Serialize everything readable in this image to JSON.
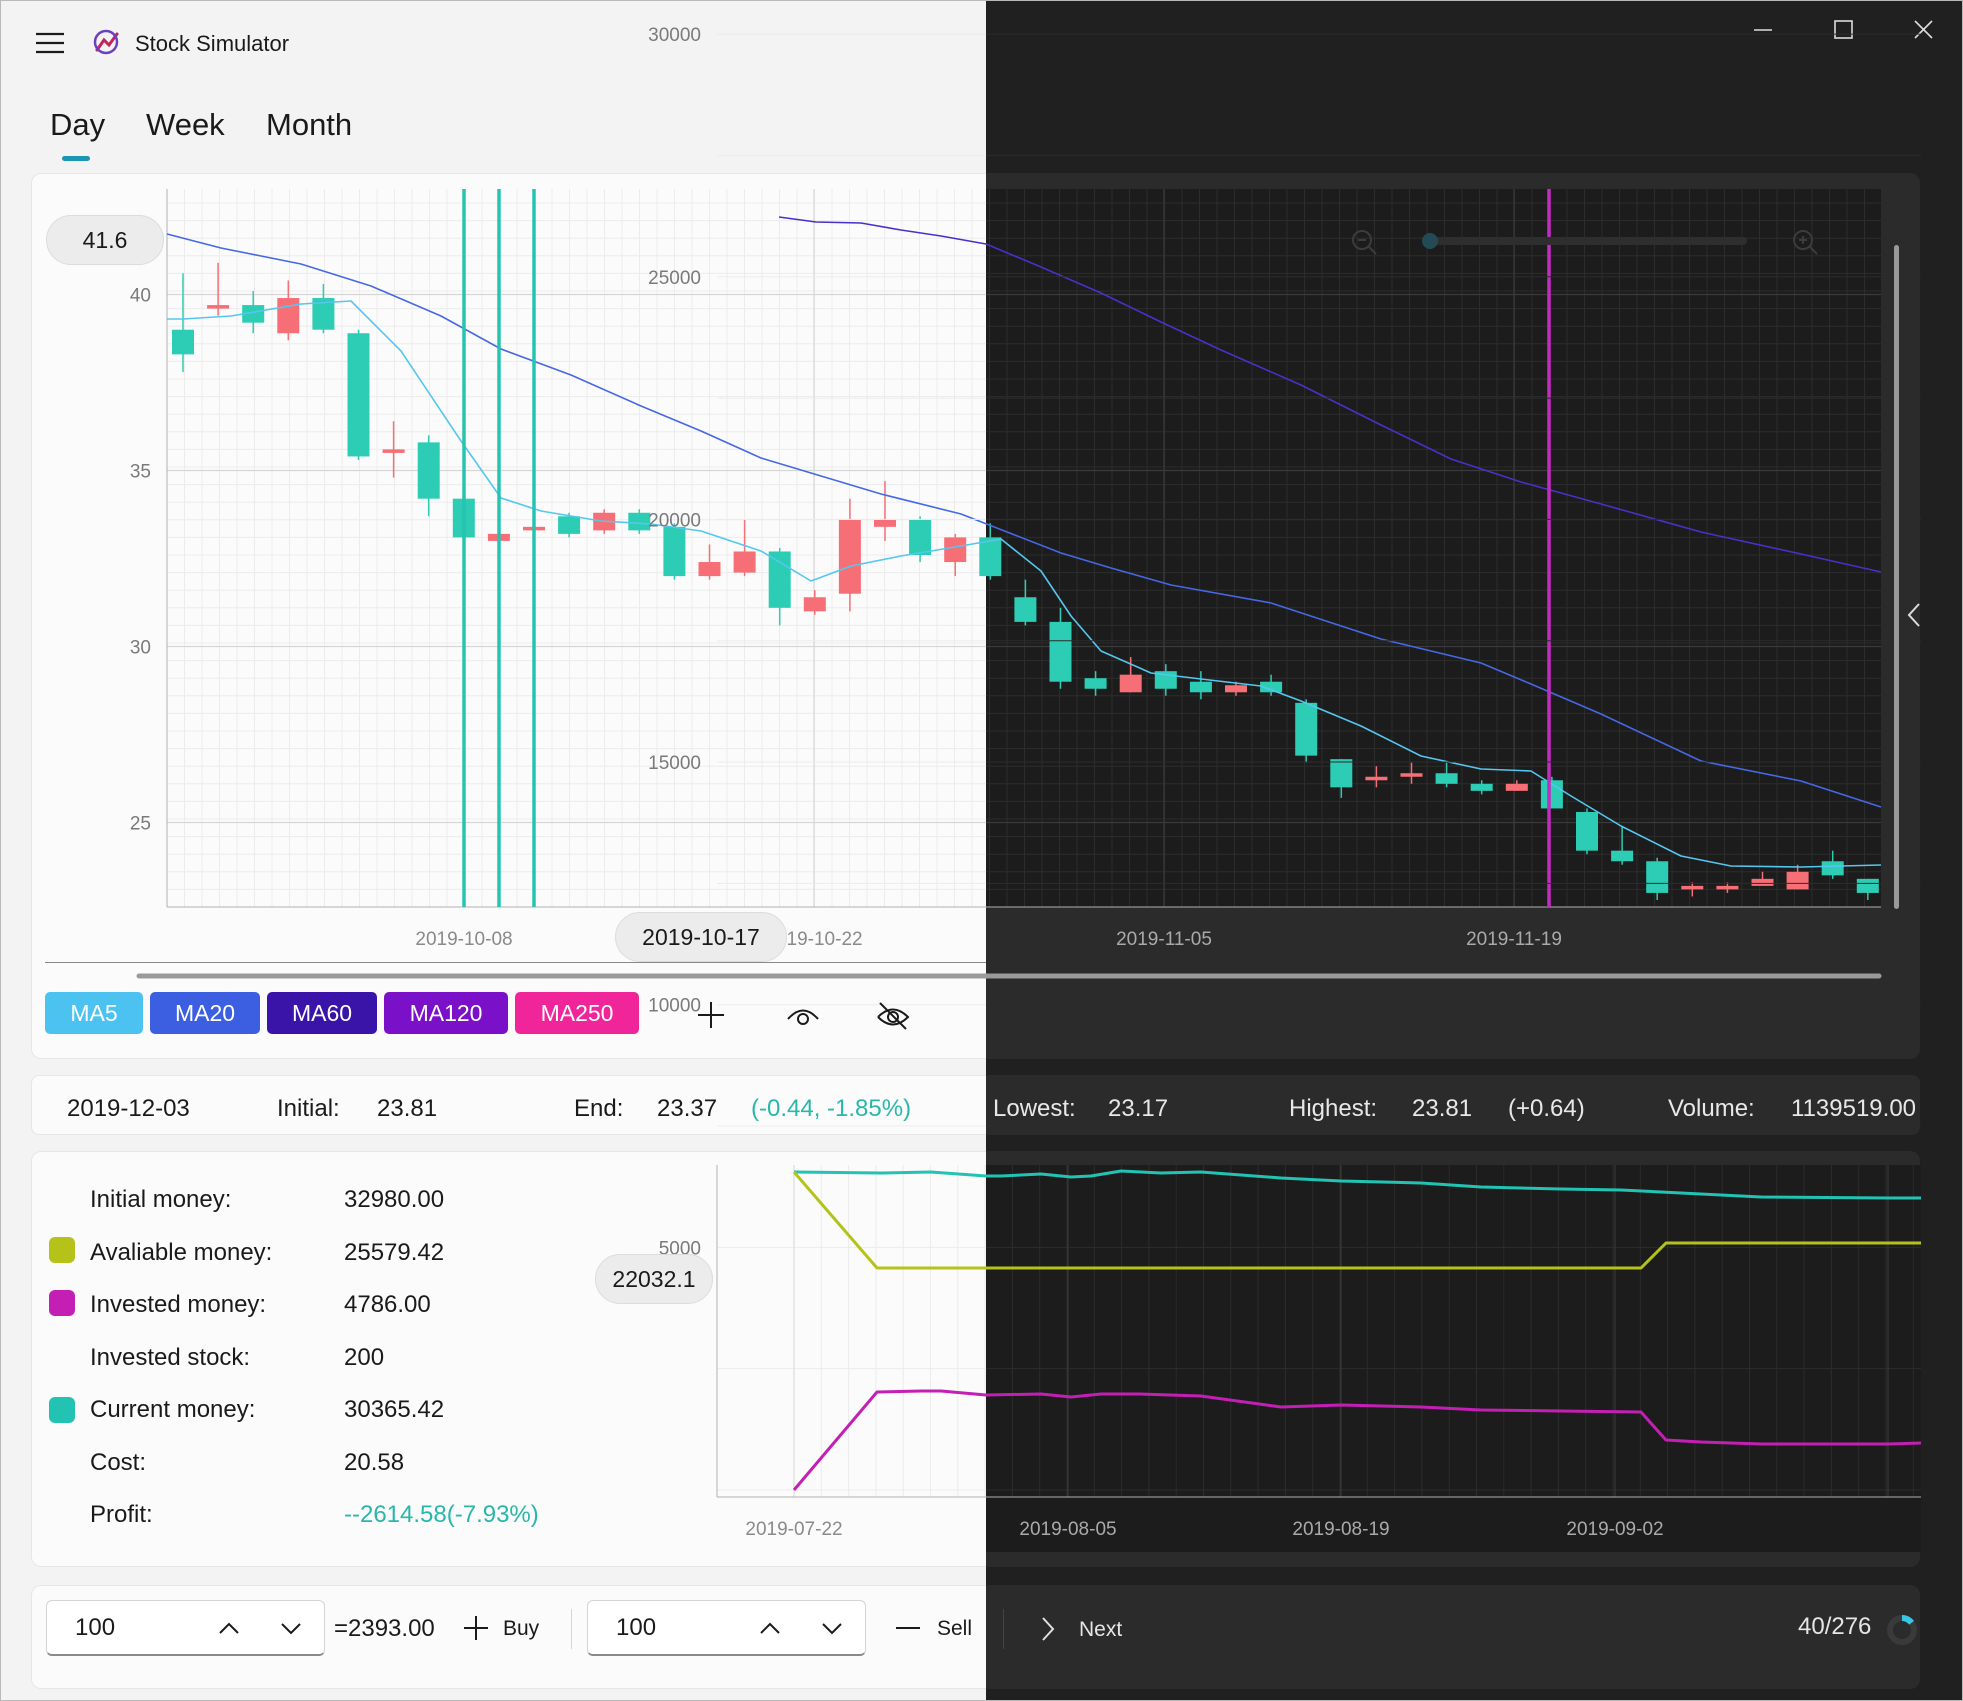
{
  "app": {
    "title": "Stock Simulator"
  },
  "window_controls": {
    "minimize": "minimize",
    "maximize": "maximize",
    "close": "close"
  },
  "tabs": [
    {
      "label": "Day"
    },
    {
      "label": "Week"
    },
    {
      "label": "Month"
    }
  ],
  "candle_chart": {
    "hover_price": "41.6",
    "hover_date": "2019-10-17",
    "y_ticks": [
      "40",
      "35",
      "30",
      "25"
    ],
    "x_ticks": [
      "2019-10-08",
      "2019-10-22",
      "2019-11-05",
      "2019-11-19"
    ]
  },
  "ma_buttons": [
    {
      "label": "MA5",
      "color": "#4cc2f0"
    },
    {
      "label": "MA20",
      "color": "#3b5fe0"
    },
    {
      "label": "MA60",
      "color": "#3a14a8"
    },
    {
      "label": "MA120",
      "color": "#7a10c8"
    },
    {
      "label": "MA250",
      "color": "#f0259a"
    }
  ],
  "toolbar_icons": [
    "add-icon",
    "eye-icon",
    "eye-off-icon"
  ],
  "day_info": {
    "date": "2019-12-03",
    "initial_label": "Initial:",
    "initial": "23.81",
    "end_label": "End:",
    "end": "23.37",
    "change": "(-0.44, -1.85%)",
    "lowest_label": "Lowest:",
    "lowest": "23.17",
    "highest_label": "Highest:",
    "highest": "23.81",
    "range": "(+0.64)",
    "volume_label": "Volume:",
    "volume": "1139519.00"
  },
  "portfolio": {
    "initial_money_label": "Initial money:",
    "initial_money": "32980.00",
    "available_label": "Avaliable money:",
    "available": "25579.42",
    "invested_label": "Invested money:",
    "invested": "4786.00",
    "invested_stock_label": "Invested stock:",
    "invested_stock": "200",
    "current_label": "Current money:",
    "current": "30365.42",
    "cost_label": "Cost:",
    "cost": "20.58",
    "profit_label": "Profit:",
    "profit": "--2614.58(-7.93%)"
  },
  "money_chart": {
    "hover_value": "22032.1",
    "y_ticks": [
      "30000",
      "25000",
      "20000",
      "15000",
      "10000",
      "5000"
    ],
    "x_ticks": [
      "2019-07-22",
      "2019-08-05",
      "2019-08-19",
      "2019-09-02"
    ]
  },
  "trade": {
    "buy_qty": "100",
    "buy_total": "=2393.00",
    "buy_label": "Buy",
    "sell_qty": "100",
    "sell_label": "Sell",
    "next_label": "Next",
    "progress": "40/276"
  },
  "colors": {
    "up": "#f76f76",
    "down": "#2ccdb4",
    "accent": "#1a95b4",
    "current": "#22c3b2",
    "available": "#b5c21a",
    "invested": "#c41fb5"
  }
}
